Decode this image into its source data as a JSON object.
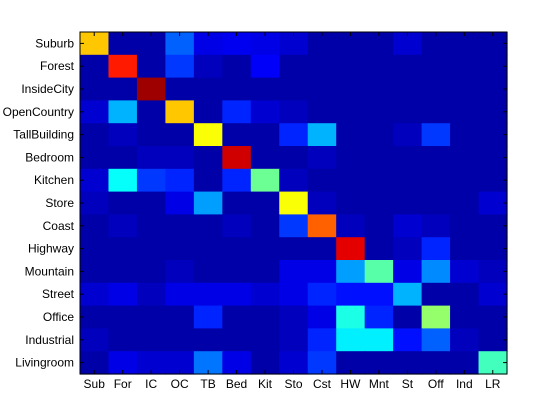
{
  "chart_data": {
    "type": "heatmap",
    "title": "",
    "xlabel": "",
    "ylabel": "",
    "grid": false,
    "legend": "none",
    "colormap": "jet",
    "value_range": [
      0,
      1
    ],
    "row_labels": [
      "Suburb",
      "Forest",
      "InsideCity",
      "OpenCountry",
      "TallBuilding",
      "Bedroom",
      "Kitchen",
      "Store",
      "Coast",
      "Highway",
      "Mountain",
      "Street",
      "Office",
      "Industrial",
      "Livingroom"
    ],
    "col_labels": [
      "Sub",
      "For",
      "IC",
      "OC",
      "TB",
      "Bed",
      "Kit",
      "Sto",
      "Cst",
      "HW",
      "Mnt",
      "St",
      "Off",
      "Ind",
      "LR"
    ],
    "matrix": [
      [
        0.68,
        0.04,
        0.04,
        0.22,
        0.1,
        0.11,
        0.1,
        0.08,
        0.04,
        0.04,
        0.04,
        0.08,
        0.04,
        0.04,
        0.04
      ],
      [
        0.04,
        0.85,
        0.04,
        0.18,
        0.06,
        0.04,
        0.12,
        0.04,
        0.04,
        0.04,
        0.04,
        0.04,
        0.04,
        0.04,
        0.04
      ],
      [
        0.04,
        0.04,
        0.97,
        0.04,
        0.04,
        0.04,
        0.04,
        0.04,
        0.04,
        0.04,
        0.04,
        0.04,
        0.04,
        0.04,
        0.04
      ],
      [
        0.08,
        0.3,
        0.04,
        0.68,
        0.04,
        0.16,
        0.08,
        0.06,
        0.04,
        0.04,
        0.04,
        0.04,
        0.04,
        0.04,
        0.04
      ],
      [
        0.04,
        0.06,
        0.04,
        0.04,
        0.62,
        0.04,
        0.04,
        0.16,
        0.3,
        0.04,
        0.04,
        0.06,
        0.18,
        0.04,
        0.04
      ],
      [
        0.04,
        0.04,
        0.06,
        0.06,
        0.04,
        0.92,
        0.04,
        0.04,
        0.06,
        0.04,
        0.04,
        0.04,
        0.04,
        0.04,
        0.04
      ],
      [
        0.08,
        0.38,
        0.18,
        0.16,
        0.04,
        0.16,
        0.48,
        0.06,
        0.04,
        0.04,
        0.04,
        0.04,
        0.04,
        0.04,
        0.04
      ],
      [
        0.06,
        0.04,
        0.04,
        0.1,
        0.28,
        0.04,
        0.04,
        0.62,
        0.06,
        0.04,
        0.04,
        0.04,
        0.04,
        0.04,
        0.08
      ],
      [
        0.04,
        0.06,
        0.04,
        0.04,
        0.04,
        0.06,
        0.04,
        0.18,
        0.78,
        0.06,
        0.04,
        0.08,
        0.06,
        0.04,
        0.04
      ],
      [
        0.04,
        0.04,
        0.04,
        0.04,
        0.04,
        0.04,
        0.04,
        0.04,
        0.04,
        0.9,
        0.04,
        0.06,
        0.16,
        0.04,
        0.04
      ],
      [
        0.04,
        0.04,
        0.04,
        0.06,
        0.04,
        0.04,
        0.04,
        0.1,
        0.1,
        0.28,
        0.46,
        0.1,
        0.26,
        0.08,
        0.06
      ],
      [
        0.08,
        0.1,
        0.06,
        0.1,
        0.1,
        0.1,
        0.08,
        0.1,
        0.16,
        0.14,
        0.14,
        0.3,
        0.04,
        0.04,
        0.08
      ],
      [
        0.04,
        0.04,
        0.04,
        0.04,
        0.16,
        0.04,
        0.04,
        0.06,
        0.1,
        0.4,
        0.16,
        0.04,
        0.52,
        0.04,
        0.04
      ],
      [
        0.06,
        0.04,
        0.04,
        0.04,
        0.04,
        0.04,
        0.04,
        0.06,
        0.16,
        0.36,
        0.36,
        0.14,
        0.22,
        0.06,
        0.04
      ],
      [
        0.04,
        0.1,
        0.08,
        0.08,
        0.24,
        0.1,
        0.04,
        0.08,
        0.18,
        0.04,
        0.04,
        0.04,
        0.04,
        0.04,
        0.44
      ]
    ]
  }
}
